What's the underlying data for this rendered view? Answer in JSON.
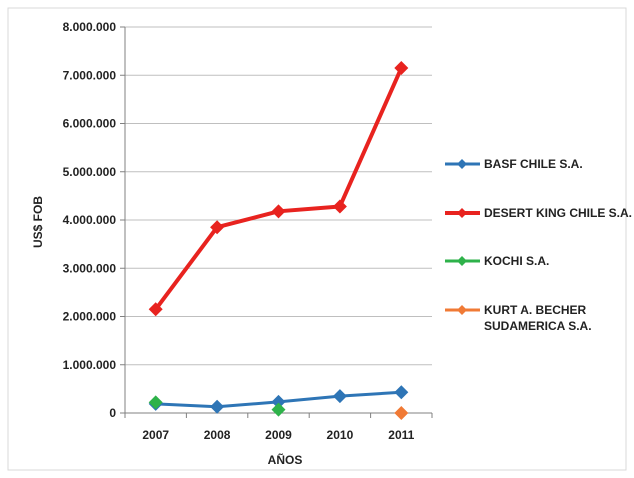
{
  "chart_data": {
    "type": "line",
    "title": "",
    "xlabel": "AÑOS",
    "ylabel": "US$ FOB",
    "categories": [
      "2007",
      "2008",
      "2009",
      "2010",
      "2011"
    ],
    "ylim": [
      0,
      8000000
    ],
    "yticks": [
      0,
      1000000,
      2000000,
      3000000,
      4000000,
      5000000,
      6000000,
      7000000,
      8000000
    ],
    "ytick_labels": [
      "0",
      "1.000.000",
      "2.000.000",
      "3.000.000",
      "4.000.000",
      "5.000.000",
      "6.000.000",
      "7.000.000",
      "8.000.000"
    ],
    "grid": true,
    "legend_position": "right",
    "series": [
      {
        "name": "BASF CHILE S.A.",
        "color": "#2e75b6",
        "values": [
          190000,
          130000,
          230000,
          350000,
          430000
        ]
      },
      {
        "name": "DESERT KING CHILE S.A.",
        "color": "#e8231f",
        "values": [
          2150000,
          3850000,
          4180000,
          4280000,
          7150000
        ]
      },
      {
        "name": "KOCHI S.A.",
        "color": "#2eb24a",
        "values": [
          220000,
          null,
          70000,
          null,
          null
        ]
      },
      {
        "name": "KURT A. BECHER SUDAMERICA S.A.",
        "color": "#f07a35",
        "values": [
          null,
          null,
          null,
          null,
          0
        ]
      }
    ],
    "legend_lines": [
      [
        "BASF CHILE S.A."
      ],
      [
        "DESERT KING CHILE S.A."
      ],
      [
        "KOCHI S.A."
      ],
      [
        "KURT A. BECHER",
        "SUDAMERICA S.A."
      ]
    ]
  }
}
